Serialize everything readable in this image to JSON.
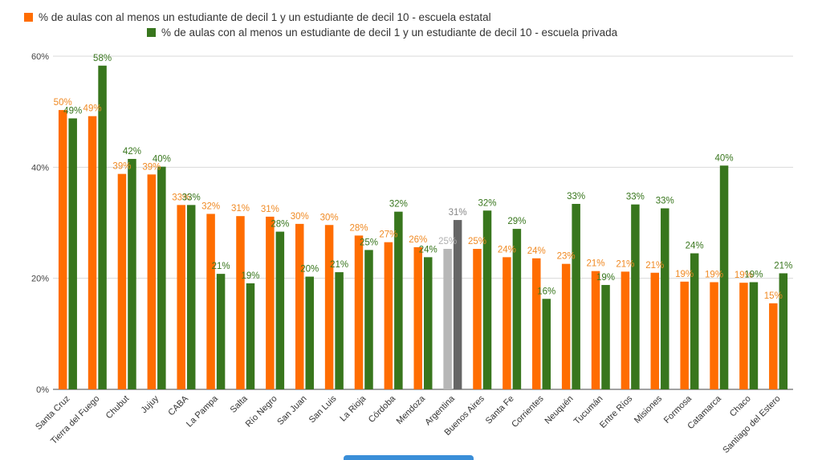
{
  "chart_data": {
    "type": "bar",
    "legend_placement": "top-left",
    "grid": true,
    "ylim": [
      0,
      60
    ],
    "yticks": [
      "0%",
      "20%",
      "40%",
      "60%"
    ],
    "categories": [
      "Santa Cruz",
      "Tierra del Fuego",
      "Chubut",
      "Jujuy",
      "CABA",
      "La Pampa",
      "Salta",
      "Río Negro",
      "San Juan",
      "San Luis",
      "La Rioja",
      "Córdoba",
      "Mendoza",
      "Argentina",
      "Buenos Aires",
      "Santa Fe",
      "Corrientes",
      "Neuquén",
      "Tucumán",
      "Entre Ríos",
      "Misiones",
      "Formosa",
      "Catamarca",
      "Chaco",
      "Santiago del Estero"
    ],
    "highlight_category": "Argentina",
    "series": [
      {
        "name": "% de aulas con al menos un estudiante de decil 1 y un estudiante de decil 10 - escuela estatal",
        "color": "#ff6d01",
        "highlight_color": "#b7b7b7",
        "label_color": "#f08a24",
        "highlight_label_color": "#b0b0b0",
        "values": [
          50.3,
          49.2,
          38.8,
          38.7,
          33.2,
          31.6,
          31.2,
          31.1,
          29.8,
          29.6,
          27.7,
          26.5,
          25.6,
          25.3,
          25.3,
          23.8,
          23.6,
          22.6,
          21.3,
          21.2,
          21.0,
          19.4,
          19.3,
          19.2,
          15.5
        ],
        "labels": [
          "50%",
          "49%",
          "39%",
          "39%",
          "33%",
          "32%",
          "31%",
          "31%",
          "30%",
          "30%",
          "28%",
          "27%",
          "26%",
          "25%",
          "25%",
          "24%",
          "24%",
          "23%",
          "21%",
          "21%",
          "21%",
          "19%",
          "19%",
          "19%",
          "15%"
        ]
      },
      {
        "name": "% de aulas con al menos un estudiante de decil 1 y un estudiante de decil 10 - escuela privada",
        "color": "#38761d",
        "highlight_color": "#666666",
        "label_color": "#38761d",
        "highlight_label_color": "#888888",
        "values": [
          48.8,
          58.3,
          41.5,
          40.1,
          33.2,
          20.8,
          19.1,
          28.4,
          20.3,
          21.1,
          25.1,
          32.0,
          23.8,
          30.5,
          32.2,
          28.9,
          16.3,
          33.4,
          18.8,
          33.3,
          32.6,
          24.5,
          40.3,
          19.3,
          20.9
        ],
        "labels": [
          "49%",
          "58%",
          "42%",
          "40%",
          "33%",
          "21%",
          "19%",
          "28%",
          "20%",
          "21%",
          "25%",
          "32%",
          "24%",
          "31%",
          "32%",
          "29%",
          "16%",
          "33%",
          "19%",
          "33%",
          "33%",
          "24%",
          "40%",
          "19%",
          "21%"
        ]
      }
    ]
  }
}
